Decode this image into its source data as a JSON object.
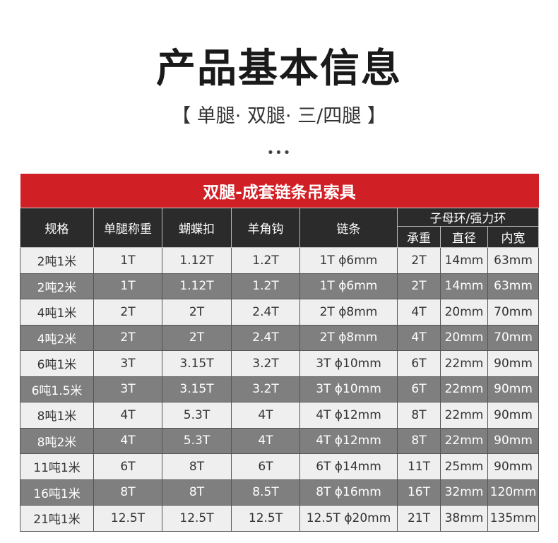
{
  "title": "产品基本信息",
  "subtitle": "【 单腿· 双腿· 三/四腿 】",
  "dots": "•••",
  "table": {
    "caption": "双腿-成套链条吊索具",
    "headers": [
      "规格",
      "单腿称重",
      "蝴蝶扣",
      "羊角钩",
      "链条",
      "子母环/强力环"
    ],
    "subheaders": [
      "承重",
      "直径",
      "内宽"
    ],
    "rows": [
      [
        "2吨1米",
        "1T",
        "1.12T",
        "1.2T",
        "1T  ϕ6mm",
        "2T",
        "14mm",
        "63mm"
      ],
      [
        "2吨2米",
        "1T",
        "1.12T",
        "1.2T",
        "1T  ϕ6mm",
        "2T",
        "14mm",
        "63mm"
      ],
      [
        "4吨1米",
        "2T",
        "2T",
        "2.4T",
        "2T  ϕ8mm",
        "4T",
        "20mm",
        "70mm"
      ],
      [
        "4吨2米",
        "2T",
        "2T",
        "2.4T",
        "2T  ϕ8mm",
        "4T",
        "20mm",
        "70mm"
      ],
      [
        "6吨1米",
        "3T",
        "3.15T",
        "3.2T",
        "3T  ϕ10mm",
        "6T",
        "22mm",
        "90mm"
      ],
      [
        "6吨1.5米",
        "3T",
        "3.15T",
        "3.2T",
        "3T  ϕ10mm",
        "6T",
        "22mm",
        "90mm"
      ],
      [
        "8吨1米",
        "4T",
        "5.3T",
        "4T",
        "4T  ϕ12mm",
        "8T",
        "22mm",
        "90mm"
      ],
      [
        "8吨2米",
        "4T",
        "5.3T",
        "4T",
        "4T  ϕ12mm",
        "8T",
        "22mm",
        "90mm"
      ],
      [
        "11吨1米",
        "6T",
        "8T",
        "6T",
        "6T  ϕ14mm",
        "11T",
        "25mm",
        "90mm"
      ],
      [
        "16吨1米",
        "8T",
        "8T",
        "8.5T",
        "8T  ϕ16mm",
        "16T",
        "32mm",
        "120mm"
      ],
      [
        "21吨1米",
        "12.5T",
        "12.5T",
        "12.5T",
        "12.5T  ϕ20mm",
        "21T",
        "38mm",
        "135mm"
      ]
    ]
  },
  "colors": {
    "accent": "#d11f26",
    "header": "#2b2b2b",
    "row_light": "#efefef",
    "row_dark": "#7f7f7f"
  }
}
